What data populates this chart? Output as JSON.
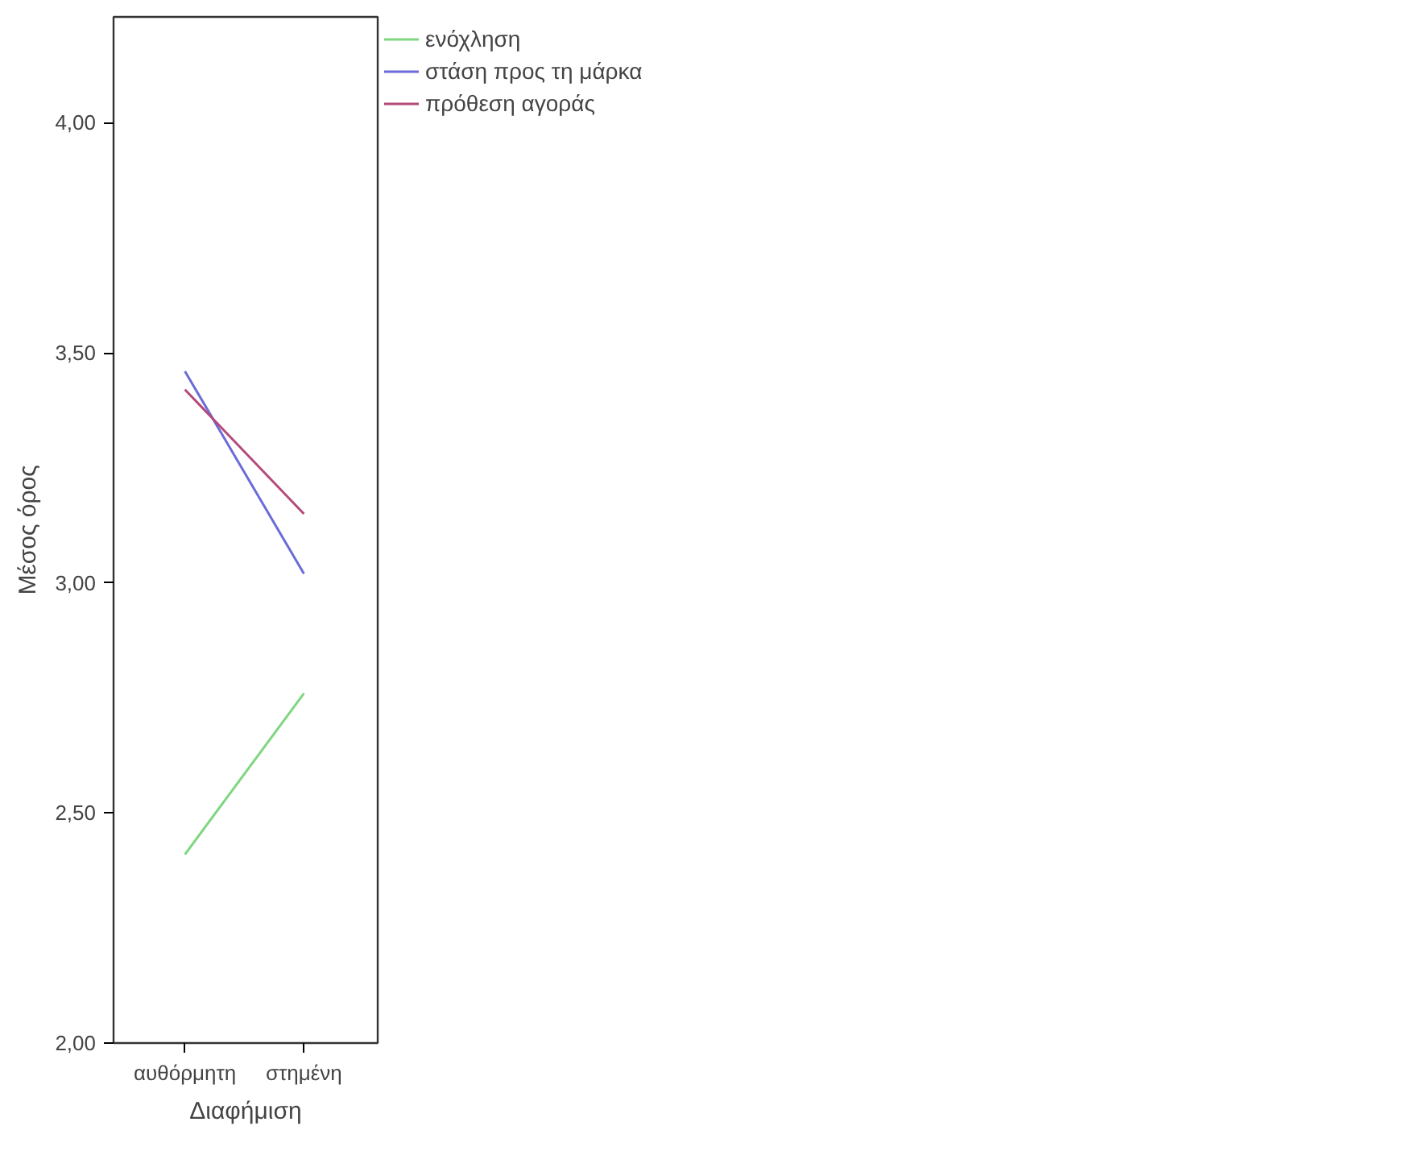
{
  "chart_data": {
    "type": "line",
    "xlabel": "Διαφήμιση",
    "ylabel": "Μέσος όρος",
    "categories": [
      "αυθόρμητη",
      "στημένη"
    ],
    "series": [
      {
        "name": "ενόχληση",
        "color": "#7fd67f",
        "values": [
          2.41,
          2.76
        ]
      },
      {
        "name": "στάση προς τη μάρκα",
        "color": "#6b6bd9",
        "values": [
          3.46,
          3.02
        ]
      },
      {
        "name": "πρόθεση αγοράς",
        "color": "#b34a7a",
        "values": [
          3.42,
          3.15
        ]
      }
    ],
    "ylim": [
      2,
      4.23
    ],
    "yticks": [
      {
        "value": 2,
        "label": "2,00"
      },
      {
        "value": 2.5,
        "label": "2,50"
      },
      {
        "value": 3,
        "label": "3,00"
      },
      {
        "value": 3.5,
        "label": "3,50"
      },
      {
        "value": 4,
        "label": "4,00"
      }
    ],
    "grid": false,
    "legend": "top right",
    "marker": "none",
    "line_style": "solid"
  }
}
